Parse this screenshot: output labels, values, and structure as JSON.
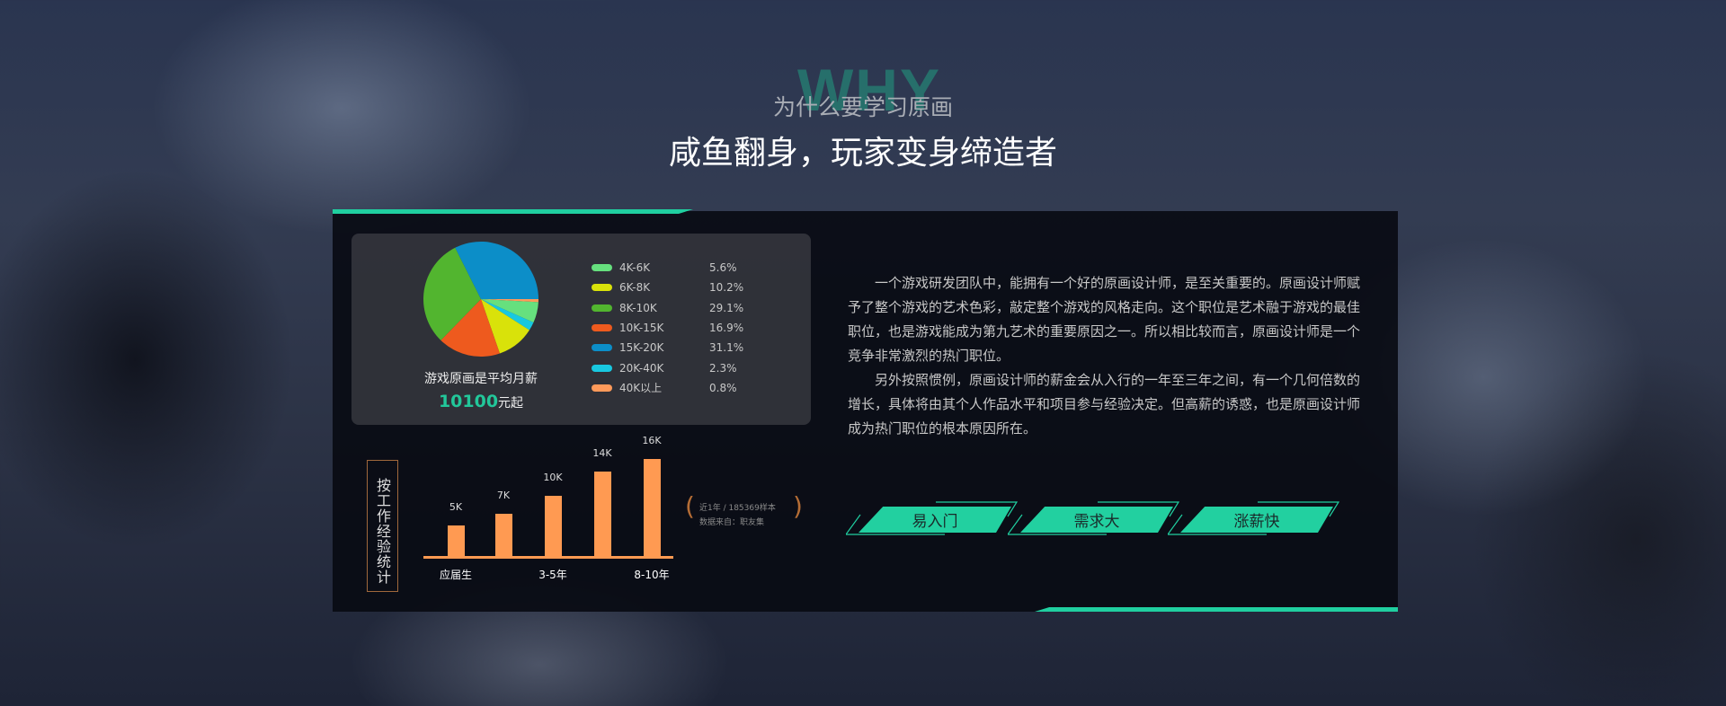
{
  "header": {
    "watermark": "WHY",
    "subtitle": "为什么要学习原画",
    "title": "咸鱼翻身，玩家变身缔造者"
  },
  "chart_data": [
    {
      "type": "pie",
      "title": "游戏原画是平均月薪",
      "value_highlight": "10100",
      "value_suffix": "元起",
      "categories": [
        "4K-6K",
        "6K-8K",
        "8K-10K",
        "10K-15K",
        "15K-20K",
        "20K-40K",
        "40K以上"
      ],
      "labels": [
        "5.6%",
        "10.2%",
        "29.1%",
        "16.9%",
        "31.1%",
        "2.3%",
        "0.8%"
      ],
      "values": [
        5.6,
        10.2,
        29.1,
        16.9,
        31.1,
        2.3,
        0.8
      ],
      "colors": [
        "#66e07e",
        "#d9e20a",
        "#52b52f",
        "#ee5a1e",
        "#0c8ec8",
        "#18c8e0",
        "#ff9a5a"
      ],
      "legend": "right"
    },
    {
      "type": "bar",
      "title": "按工作经验统计",
      "categories": [
        "应届生",
        "",
        "3-5年",
        "",
        "8-10年"
      ],
      "values": [
        5,
        7,
        10,
        14,
        16
      ],
      "labels": [
        "5K",
        "7K",
        "10K",
        "14K",
        "16K"
      ],
      "color": "#ff9a52",
      "note": [
        "近1年 / 185369样本",
        "数据来自：职友集"
      ]
    }
  ],
  "article": {
    "paragraphs": [
      "一个游戏研发团队中，能拥有一个好的原画设计师，是至关重要的。原画设计师赋予了整个游戏的艺术色彩，敲定整个游戏的风格走向。这个职位是艺术融于游戏的最佳职位，也是游戏能成为第九艺术的重要原因之一。所以相比较而言，原画设计师是一个竞争非常激烈的热门职位。",
      "另外按照惯例，原画设计师的薪金会从入行的一年至三年之间，有一个几何倍数的增长，具体将由其个人作品水平和项目参与经验决定。但高薪的诱惑，也是原画设计师成为热门职位的根本原因所在。"
    ]
  },
  "buttons": [
    "易入门",
    "需求大",
    "涨薪快"
  ],
  "accent": "#20cfa0"
}
